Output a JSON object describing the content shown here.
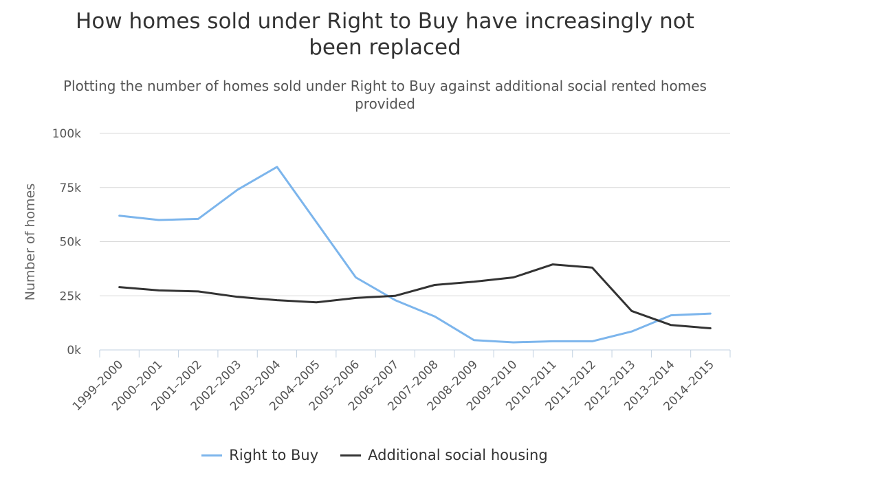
{
  "chart_data": {
    "type": "line",
    "title": "How homes sold under Right to Buy have increasingly not been replaced",
    "subtitle": "Plotting the number of homes sold under Right to Buy against additional social rented homes provided",
    "ylabel": "Number of homes",
    "xlabel": "",
    "ylim": [
      0,
      100000
    ],
    "yticks": [
      0,
      25000,
      50000,
      75000,
      100000
    ],
    "ytick_labels": [
      "0k",
      "25k",
      "50k",
      "75k",
      "100k"
    ],
    "grid": true,
    "legend_position": "bottom",
    "categories": [
      "1999–2000",
      "2000–2001",
      "2001–2002",
      "2002–2003",
      "2003–2004",
      "2004–2005",
      "2005–2006",
      "2006–2007",
      "2007–2008",
      "2008–2009",
      "2009–2010",
      "2010–2011",
      "2011–2012",
      "2012–2013",
      "2013–2014",
      "2014–2015"
    ],
    "series": [
      {
        "name": "Right to Buy",
        "color": "#7cb5ec",
        "values": [
          62000,
          60000,
          60500,
          74000,
          84500,
          59000,
          33500,
          23000,
          15500,
          4500,
          3500,
          4000,
          4000,
          8500,
          16000,
          16800
        ]
      },
      {
        "name": "Additional social housing",
        "color": "#333333",
        "values": [
          29000,
          27500,
          27000,
          24500,
          23000,
          22000,
          24000,
          25000,
          30000,
          31500,
          33500,
          39500,
          38000,
          18000,
          11500,
          10000
        ]
      }
    ]
  }
}
